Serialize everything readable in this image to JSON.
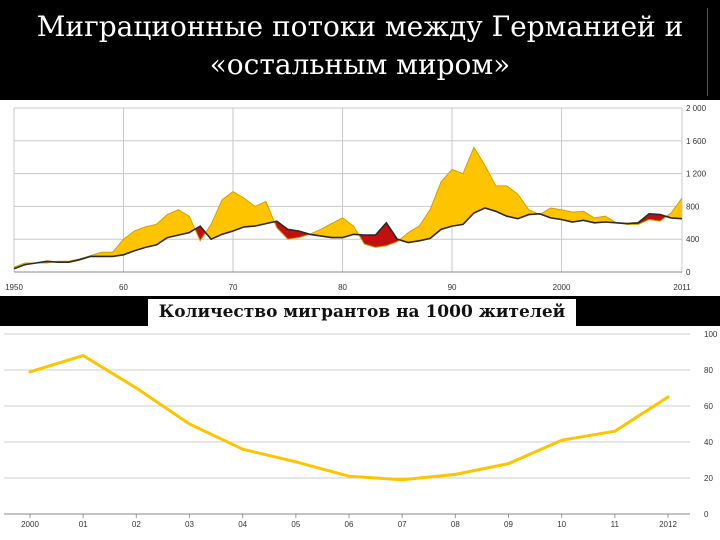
{
  "title": {
    "line1": "Миграционные потоки между Германией и",
    "line2": "«остальным миром»"
  },
  "band_label": "Количество мигрантов на 1000 жителей",
  "chart_data": [
    {
      "type": "area",
      "xlim": [
        1950,
        2011
      ],
      "ylim": [
        0,
        2000
      ],
      "x_ticks": [
        "1950",
        "60",
        "70",
        "80",
        "90",
        "2000",
        "2011"
      ],
      "y_ticks": [
        "0",
        "400",
        "800",
        "1 200",
        "1 600",
        "2 000"
      ],
      "colors": {
        "immigration": "#ffc400",
        "emigration_excess": "#c01010",
        "grid": "#c8c8c8"
      },
      "series": [
        {
          "x": [
            1950,
            1951,
            1952,
            1953,
            1954,
            1955,
            1956,
            1957,
            1958,
            1959,
            1960,
            1961,
            1962,
            1963,
            1964,
            1965,
            1966,
            1967,
            1968,
            1969,
            1970,
            1971,
            1972,
            1973,
            1974,
            1975,
            1976,
            1977,
            1978,
            1979,
            1980,
            1981,
            1982,
            1983,
            1984,
            1985,
            1986,
            1987,
            1988,
            1989,
            1990,
            1991,
            1992,
            1993,
            1994,
            1995,
            1996,
            1997,
            1998,
            1999,
            2000,
            2001,
            2002,
            2003,
            2004,
            2005,
            2006,
            2007,
            2008,
            2009,
            2010,
            2011
          ],
          "values": [
            60,
            110,
            110,
            110,
            130,
            130,
            160,
            200,
            240,
            240,
            400,
            500,
            550,
            580,
            700,
            760,
            680,
            380,
            580,
            880,
            980,
            900,
            800,
            860,
            540,
            400,
            420,
            460,
            520,
            590,
            660,
            560,
            340,
            300,
            320,
            370,
            480,
            560,
            760,
            1100,
            1250,
            1200,
            1520,
            1300,
            1050,
            1050,
            950,
            760,
            700,
            780,
            760,
            730,
            740,
            660,
            680,
            600,
            580,
            580,
            640,
            620,
            720,
            900
          ]
        },
        {
          "x": [
            1950,
            1951,
            1952,
            1953,
            1954,
            1955,
            1956,
            1957,
            1958,
            1959,
            1960,
            1961,
            1962,
            1963,
            1964,
            1965,
            1966,
            1967,
            1968,
            1969,
            1970,
            1971,
            1972,
            1973,
            1974,
            1975,
            1976,
            1977,
            1978,
            1979,
            1980,
            1981,
            1982,
            1983,
            1984,
            1985,
            1986,
            1987,
            1988,
            1989,
            1990,
            1991,
            1992,
            1993,
            1994,
            1995,
            1996,
            1997,
            1998,
            1999,
            2000,
            2001,
            2002,
            2003,
            2004,
            2005,
            2006,
            2007,
            2008,
            2009,
            2010,
            2011
          ],
          "values": [
            40,
            90,
            110,
            130,
            120,
            120,
            150,
            190,
            190,
            190,
            210,
            260,
            300,
            330,
            420,
            450,
            480,
            560,
            400,
            460,
            500,
            550,
            560,
            590,
            620,
            520,
            500,
            460,
            440,
            420,
            420,
            460,
            450,
            450,
            600,
            400,
            360,
            380,
            410,
            520,
            560,
            580,
            720,
            780,
            740,
            680,
            650,
            700,
            710,
            660,
            640,
            610,
            630,
            600,
            610,
            600,
            590,
            600,
            710,
            700,
            660,
            650
          ]
        }
      ]
    },
    {
      "type": "line",
      "categories": [
        "2000",
        "01",
        "02",
        "03",
        "04",
        "05",
        "06",
        "07",
        "08",
        "09",
        "10",
        "11",
        "2012"
      ],
      "values": [
        79,
        88,
        70,
        50,
        36,
        29,
        21,
        19,
        22,
        28,
        41,
        46,
        65
      ],
      "ylim": [
        0,
        100
      ],
      "y_ticks": [
        "0",
        "20",
        "40",
        "60",
        "80",
        "100"
      ],
      "colors": {
        "line": "#ffc400",
        "grid": "#cfcfcf"
      }
    }
  ]
}
